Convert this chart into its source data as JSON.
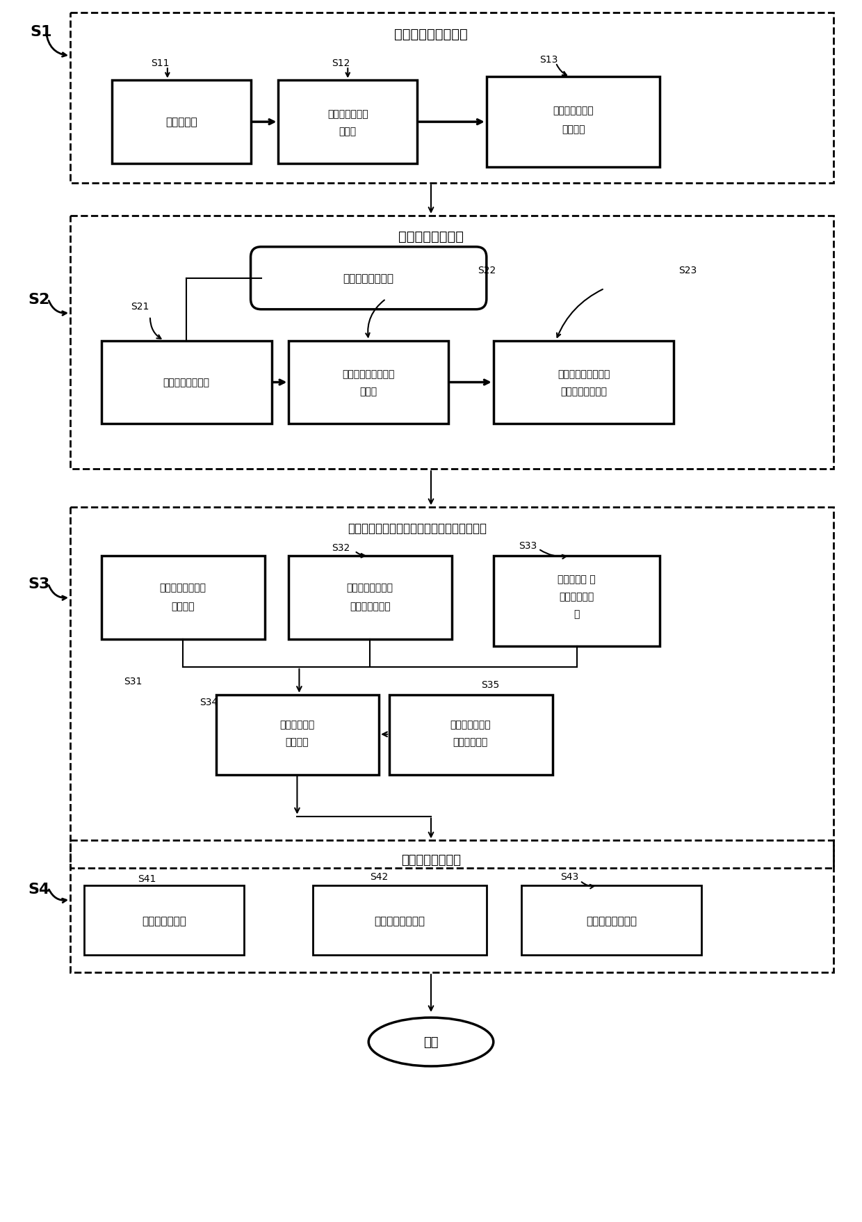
{
  "background": "#ffffff",
  "s1_title": "云镜摄系统参数标定",
  "s11_text": "相像距标定",
  "s12_text1": "获取像方物方对",
  "s12_text2": "应系数",
  "s13_text1": "像移速率与帧帧",
  "s13_text2": "值的拟合",
  "s2_title": "同名像点配准模型",
  "oval_text": "植株局部图像分割",
  "s21_text": "帧间向量转换模型",
  "s22_text1": "帧间光轴运动向量获",
  "s22_text2": "取方法",
  "s23_text1": "同名像点三维配准矩",
  "s23_text2": "阵和差分优化检验",
  "s3_title": "植株目标部位的三维点云世界坐标的获取算法",
  "s31top_text1": "同名像点三维世界",
  "s31top_text2": "转换矩阵",
  "s32_text1": "帧间双光学系统矢",
  "s32_text2": "量投影关系模型",
  "s33_text1": "云镜摄系统 运",
  "s33_text2": "动矢量测量模",
  "s33_text3": "型",
  "s34_text1": "植株三维点云",
  "s34_text2": "坐标获取",
  "s35_text1": "点云坐标的材质",
  "s35_text2": "灰度校正因子",
  "s4_title": "植株局部测量方法",
  "s41_text": "叶面积测量方法",
  "s42_text": "果实体积测量方法",
  "s43_text": "茎杆直径测量方法",
  "end_text": "结束"
}
